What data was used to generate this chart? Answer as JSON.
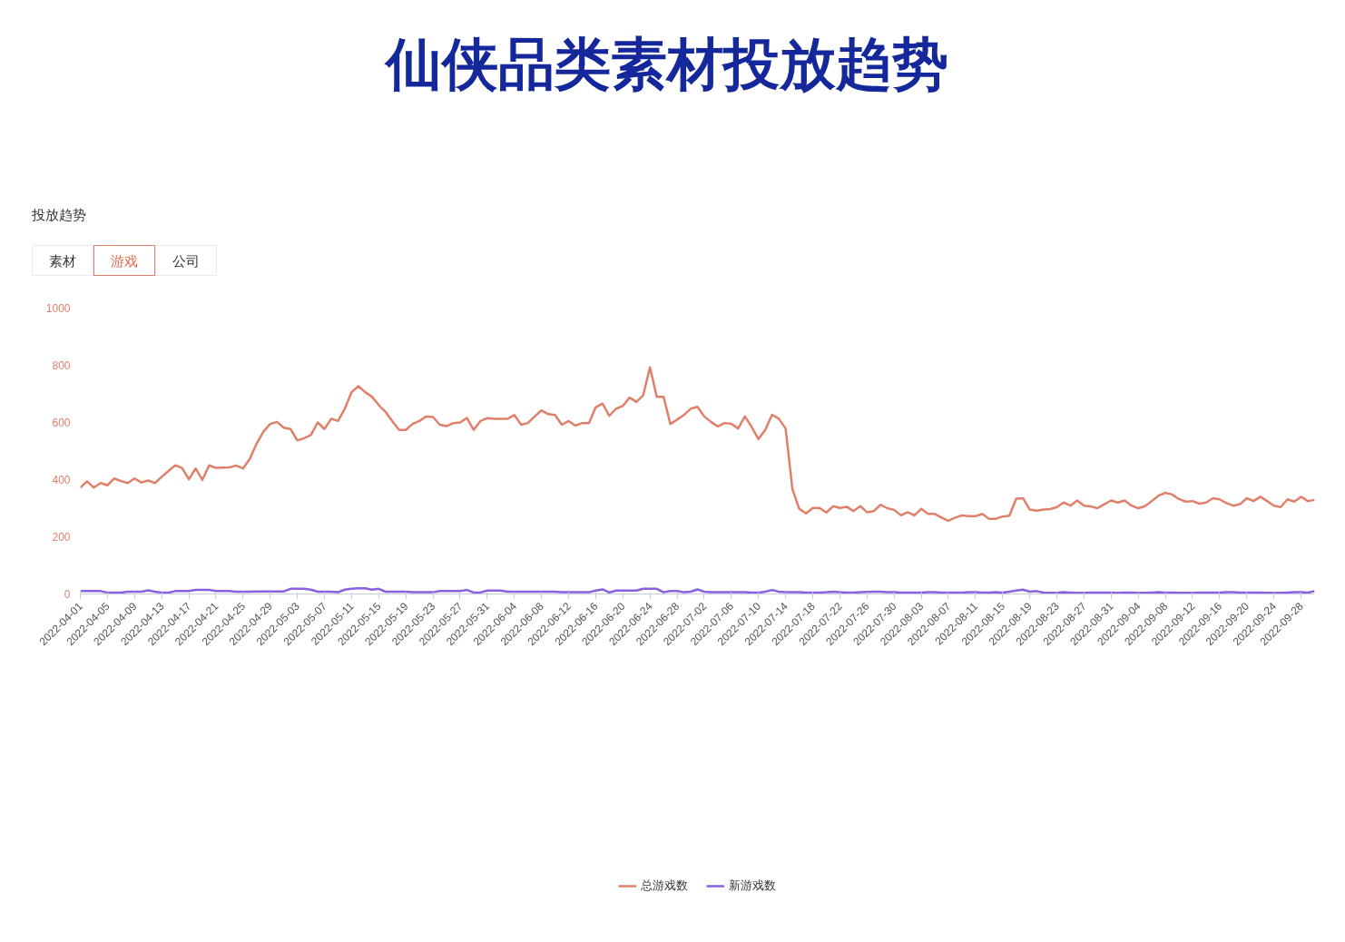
{
  "chart_data": {
    "type": "line",
    "title": "仙侠品类素材投放趋势",
    "subtitle": "投放趋势",
    "annotations": [
      "素材",
      "游戏",
      "公司"
    ],
    "x": [
      "2022-04-01",
      "2022-04-02",
      "2022-04-03",
      "2022-04-04",
      "2022-04-05",
      "2022-04-06",
      "2022-04-07",
      "2022-04-08",
      "2022-04-09",
      "2022-04-10",
      "2022-04-11",
      "2022-04-12",
      "2022-04-13",
      "2022-04-14",
      "2022-04-15",
      "2022-04-16",
      "2022-04-17",
      "2022-04-18",
      "2022-04-19",
      "2022-04-20",
      "2022-04-21",
      "2022-04-22",
      "2022-04-23",
      "2022-04-24",
      "2022-04-25",
      "2022-04-26",
      "2022-04-27",
      "2022-04-28",
      "2022-04-29",
      "2022-04-30",
      "2022-05-01",
      "2022-05-02",
      "2022-05-03",
      "2022-05-04",
      "2022-05-05",
      "2022-05-06",
      "2022-05-07",
      "2022-05-08",
      "2022-05-09",
      "2022-05-10",
      "2022-05-11",
      "2022-05-12",
      "2022-05-13",
      "2022-05-14",
      "2022-05-15",
      "2022-05-16",
      "2022-05-17",
      "2022-05-18",
      "2022-05-19",
      "2022-05-20",
      "2022-05-21",
      "2022-05-22",
      "2022-05-23",
      "2022-05-24",
      "2022-05-25",
      "2022-05-26",
      "2022-05-27",
      "2022-05-28",
      "2022-05-29",
      "2022-05-30",
      "2022-05-31",
      "2022-06-01",
      "2022-06-02",
      "2022-06-03",
      "2022-06-04",
      "2022-06-05",
      "2022-06-06",
      "2022-06-07",
      "2022-06-08",
      "2022-06-09",
      "2022-06-10",
      "2022-06-11",
      "2022-06-12",
      "2022-06-13",
      "2022-06-14",
      "2022-06-15",
      "2022-06-16",
      "2022-06-17",
      "2022-06-18",
      "2022-06-19",
      "2022-06-20",
      "2022-06-21",
      "2022-06-22",
      "2022-06-23",
      "2022-06-24",
      "2022-06-25",
      "2022-06-26",
      "2022-06-27",
      "2022-06-28",
      "2022-06-29",
      "2022-06-30",
      "2022-07-01",
      "2022-07-02",
      "2022-07-03",
      "2022-07-04",
      "2022-07-05",
      "2022-07-06",
      "2022-07-07",
      "2022-07-08",
      "2022-07-09",
      "2022-07-10",
      "2022-07-11",
      "2022-07-12",
      "2022-07-13",
      "2022-07-14",
      "2022-07-15",
      "2022-07-16",
      "2022-07-17",
      "2022-07-18",
      "2022-07-19",
      "2022-07-20",
      "2022-07-21",
      "2022-07-22",
      "2022-07-23",
      "2022-07-24",
      "2022-07-25",
      "2022-07-26",
      "2022-07-27",
      "2022-07-28",
      "2022-07-29",
      "2022-07-30",
      "2022-07-31",
      "2022-08-01",
      "2022-08-02",
      "2022-08-03",
      "2022-08-04",
      "2022-08-05",
      "2022-08-06",
      "2022-08-07",
      "2022-08-08",
      "2022-08-09",
      "2022-08-10",
      "2022-08-11",
      "2022-08-12",
      "2022-08-13",
      "2022-08-14",
      "2022-08-15",
      "2022-08-16",
      "2022-08-17",
      "2022-08-18",
      "2022-08-19",
      "2022-08-20",
      "2022-08-21",
      "2022-08-22",
      "2022-08-23",
      "2022-08-24",
      "2022-08-25",
      "2022-08-26",
      "2022-08-27",
      "2022-08-28",
      "2022-08-29",
      "2022-08-30",
      "2022-08-31",
      "2022-09-01",
      "2022-09-02",
      "2022-09-03",
      "2022-09-04",
      "2022-09-05",
      "2022-09-06",
      "2022-09-07",
      "2022-09-08",
      "2022-09-09",
      "2022-09-10",
      "2022-09-11",
      "2022-09-12",
      "2022-09-13",
      "2022-09-14",
      "2022-09-15",
      "2022-09-16",
      "2022-09-17",
      "2022-09-18",
      "2022-09-19",
      "2022-09-20",
      "2022-09-21",
      "2022-09-22",
      "2022-09-23",
      "2022-09-24",
      "2022-09-25",
      "2022-09-26",
      "2022-09-27",
      "2022-09-28",
      "2022-09-29",
      "2022-09-30"
    ],
    "series": [
      {
        "name": "总游戏数",
        "color": "#e0806a",
        "values": [
          372,
          394,
          372,
          388,
          380,
          404,
          395,
          388,
          404,
          390,
          397,
          388,
          410,
          430,
          450,
          441,
          401,
          439,
          399,
          450,
          441,
          442,
          443,
          449,
          439,
          473,
          526,
          568,
          595,
          602,
          582,
          577,
          537,
          545,
          556,
          600,
          577,
          613,
          605,
          648,
          706,
          727,
          706,
          690,
          661,
          637,
          605,
          574,
          574,
          595,
          605,
          621,
          619,
          592,
          587,
          598,
          600,
          616,
          574,
          605,
          615,
          613,
          613,
          613,
          626,
          592,
          598,
          621,
          642,
          629,
          626,
          592,
          605,
          589,
          598,
          598,
          653,
          666,
          623,
          648,
          658,
          687,
          672,
          695,
          793,
          690,
          690,
          595,
          610,
          626,
          648,
          655,
          621,
          602,
          586,
          598,
          595,
          579,
          621,
          584,
          542,
          574,
          627,
          613,
          579,
          367,
          298,
          282,
          301,
          301,
          285,
          307,
          301,
          305,
          290,
          307,
          286,
          290,
          312,
          300,
          294,
          275,
          286,
          275,
          298,
          280,
          280,
          267,
          256,
          267,
          275,
          272,
          272,
          280,
          263,
          263,
          271,
          274,
          333,
          335,
          295,
          291,
          295,
          297,
          304,
          320,
          309,
          327,
          309,
          306,
          300,
          314,
          327,
          320,
          327,
          309,
          300,
          307,
          325,
          344,
          354,
          348,
          332,
          323,
          325,
          316,
          320,
          335,
          331,
          318,
          309,
          314,
          335,
          325,
          340,
          325,
          309,
          304,
          331,
          323,
          340,
          325,
          329
        ]
      },
      {
        "name": "新游戏数",
        "color": "#8a5fe0",
        "values": [
          10,
          10,
          10,
          10,
          5,
          5,
          5,
          8,
          8,
          8,
          13,
          8,
          5,
          5,
          10,
          10,
          10,
          14,
          14,
          14,
          10,
          10,
          10,
          8,
          8,
          8,
          9,
          9,
          9,
          9,
          9,
          18,
          18,
          18,
          15,
          8,
          8,
          8,
          6,
          15,
          18,
          20,
          20,
          15,
          18,
          8,
          8,
          8,
          8,
          6,
          6,
          6,
          6,
          10,
          10,
          10,
          10,
          14,
          5,
          5,
          12,
          12,
          12,
          8,
          8,
          8,
          8,
          8,
          8,
          8,
          8,
          6,
          6,
          6,
          6,
          6,
          12,
          16,
          5,
          12,
          12,
          12,
          12,
          18,
          18,
          18,
          6,
          10,
          10,
          6,
          8,
          16,
          8,
          6,
          6,
          6,
          6,
          6,
          6,
          5,
          5,
          8,
          14,
          8,
          6,
          6,
          6,
          5,
          5,
          5,
          6,
          8,
          6,
          5,
          5,
          6,
          7,
          8,
          8,
          6,
          6,
          5,
          5,
          5,
          5,
          6,
          6,
          5,
          5,
          5,
          5,
          6,
          6,
          5,
          5,
          6,
          5,
          8,
          12,
          15,
          8,
          10,
          5,
          4,
          4,
          6,
          5,
          4,
          4,
          5,
          5,
          5,
          5,
          4,
          5,
          5,
          4,
          4,
          5,
          6,
          5,
          5,
          4,
          4,
          4,
          5,
          5,
          5,
          5,
          6,
          6,
          5,
          5,
          5,
          5,
          4,
          4,
          4,
          5,
          6,
          6,
          5,
          10
        ]
      }
    ],
    "xlim": [
      "2022-04-01",
      "2022-09-30"
    ],
    "xticks": [
      "2022-04-01",
      "2022-04-05",
      "2022-04-09",
      "2022-04-13",
      "2022-04-17",
      "2022-04-21",
      "2022-04-25",
      "2022-04-29",
      "2022-05-03",
      "2022-05-07",
      "2022-05-11",
      "2022-05-15",
      "2022-05-19",
      "2022-05-23",
      "2022-05-27",
      "2022-05-31",
      "2022-06-04",
      "2022-06-08",
      "2022-06-12",
      "2022-06-16",
      "2022-06-20",
      "2022-06-24",
      "2022-06-28",
      "2022-07-02",
      "2022-07-06",
      "2022-07-10",
      "2022-07-14",
      "2022-07-18",
      "2022-07-22",
      "2022-07-26",
      "2022-07-30",
      "2022-08-03",
      "2022-08-07",
      "2022-08-11",
      "2022-08-15",
      "2022-08-19",
      "2022-08-23",
      "2022-08-27",
      "2022-08-31",
      "2022-09-04",
      "2022-09-08",
      "2022-09-12",
      "2022-09-16",
      "2022-09-20",
      "2022-09-24",
      "2022-09-28"
    ],
    "ylim": [
      0,
      1000
    ],
    "yticks": [
      0,
      200,
      400,
      600,
      800,
      1000
    ],
    "grid": false,
    "legend": "bottom"
  }
}
